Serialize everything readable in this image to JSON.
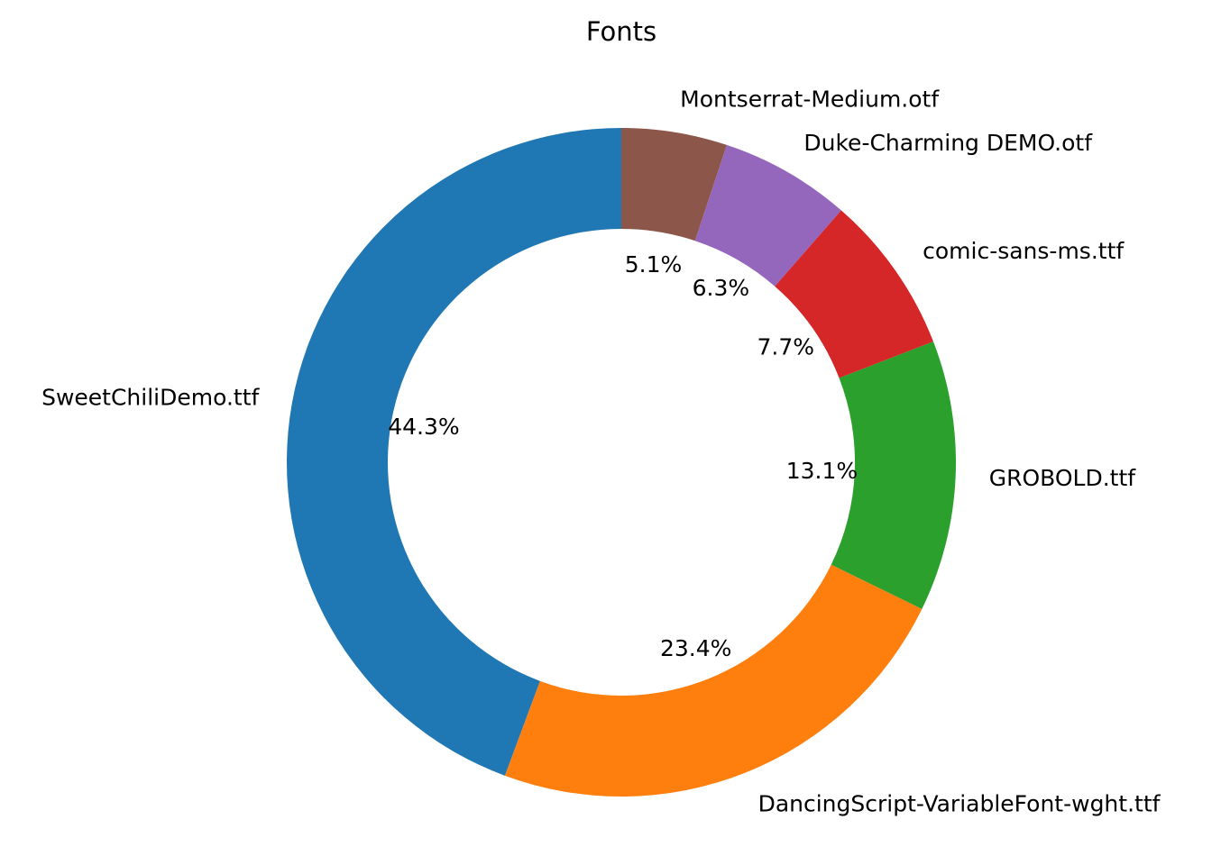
{
  "chart_data": {
    "type": "pie",
    "variant": "donut",
    "title": "Fonts",
    "start_angle": 90,
    "direction": "counterclockwise",
    "slices": [
      {
        "label": "SweetChiliDemo.ttf",
        "value": 44.3,
        "pct_label": "44.3%",
        "color": "#1f77b4"
      },
      {
        "label": "DancingScript-VariableFont-wght.ttf",
        "value": 23.4,
        "pct_label": "23.4%",
        "color": "#ff7f0e"
      },
      {
        "label": "GROBOLD.ttf",
        "value": 13.1,
        "pct_label": "13.1%",
        "color": "#2ca02c"
      },
      {
        "label": "comic-sans-ms.ttf",
        "value": 7.7,
        "pct_label": "7.7%",
        "color": "#d62728"
      },
      {
        "label": "Duke-Charming DEMO.otf",
        "value": 6.3,
        "pct_label": "6.3%",
        "color": "#9467bd"
      },
      {
        "label": "Montserrat-Medium.otf",
        "value": 5.1,
        "pct_label": "5.1%",
        "color": "#8c564b"
      }
    ]
  }
}
